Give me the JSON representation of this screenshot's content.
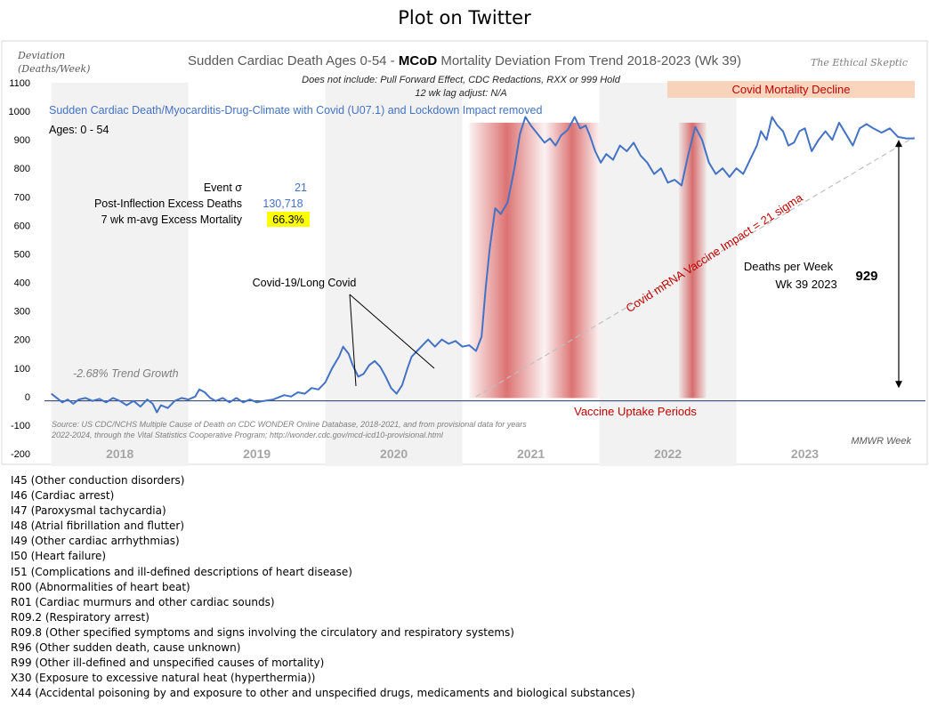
{
  "page": {
    "title": "Plot on Twitter"
  },
  "chart_data": {
    "type": "line",
    "title_prefix": "Sudden Cardiac Death Ages 0-54 - ",
    "title_bold": "MCoD",
    "title_suffix": " Mortality Deviation From Trend  2018-2023 (Wk 39)",
    "subtitle_1": "Does not include: Pull Forward Effect,  CDC Redactions, RXX or 999 Hold",
    "subtitle_2": "12 wk lag adjust: N/A",
    "watermark": "The Ethical Skeptic",
    "ylabel_1": "Deviation",
    "ylabel_2": "(Deaths/Week)",
    "xlabel": "MMWR Week",
    "ylim": [
      -200,
      1100
    ],
    "yticks": [
      -200,
      -100,
      0,
      100,
      200,
      300,
      400,
      500,
      600,
      700,
      800,
      900,
      1000,
      1100
    ],
    "years": [
      "2018",
      "2019",
      "2020",
      "2021",
      "2022",
      "2023"
    ],
    "series": [
      {
        "name": "Sudden Cardiac Death/Myocarditis-Drug-Climate with Covid (U07.1) and Lockdown Impact removed",
        "color": "#4472c4",
        "values": [
          [
            2018.0,
            10
          ],
          [
            2018.04,
            -5
          ],
          [
            2018.08,
            -20
          ],
          [
            2018.12,
            -10
          ],
          [
            2018.16,
            -25
          ],
          [
            2018.2,
            -10
          ],
          [
            2018.25,
            -5
          ],
          [
            2018.3,
            -15
          ],
          [
            2018.35,
            -8
          ],
          [
            2018.4,
            -20
          ],
          [
            2018.45,
            -5
          ],
          [
            2018.5,
            -15
          ],
          [
            2018.55,
            -30
          ],
          [
            2018.6,
            -15
          ],
          [
            2018.65,
            -35
          ],
          [
            2018.7,
            -10
          ],
          [
            2018.74,
            -25
          ],
          [
            2018.77,
            -55
          ],
          [
            2018.8,
            -30
          ],
          [
            2018.85,
            -40
          ],
          [
            2018.9,
            -15
          ],
          [
            2018.95,
            -5
          ],
          [
            2019.0,
            -10
          ],
          [
            2019.05,
            0
          ],
          [
            2019.08,
            25
          ],
          [
            2019.12,
            15
          ],
          [
            2019.16,
            -5
          ],
          [
            2019.2,
            -15
          ],
          [
            2019.25,
            -5
          ],
          [
            2019.3,
            -20
          ],
          [
            2019.35,
            -5
          ],
          [
            2019.4,
            -20
          ],
          [
            2019.45,
            -10
          ],
          [
            2019.5,
            -20
          ],
          [
            2019.55,
            -15
          ],
          [
            2019.62,
            -10
          ],
          [
            2019.7,
            5
          ],
          [
            2019.75,
            0
          ],
          [
            2019.8,
            15
          ],
          [
            2019.85,
            10
          ],
          [
            2019.9,
            30
          ],
          [
            2019.95,
            25
          ],
          [
            2020.0,
            50
          ],
          [
            2020.05,
            100
          ],
          [
            2020.1,
            140
          ],
          [
            2020.13,
            175
          ],
          [
            2020.17,
            150
          ],
          [
            2020.2,
            110
          ],
          [
            2020.24,
            70
          ],
          [
            2020.28,
            80
          ],
          [
            2020.32,
            110
          ],
          [
            2020.36,
            125
          ],
          [
            2020.4,
            105
          ],
          [
            2020.44,
            70
          ],
          [
            2020.48,
            30
          ],
          [
            2020.52,
            10
          ],
          [
            2020.56,
            40
          ],
          [
            2020.6,
            100
          ],
          [
            2020.63,
            140
          ],
          [
            2020.67,
            160
          ],
          [
            2020.71,
            180
          ],
          [
            2020.75,
            200
          ],
          [
            2020.8,
            175
          ],
          [
            2020.85,
            200
          ],
          [
            2020.9,
            185
          ],
          [
            2020.95,
            195
          ],
          [
            2021.0,
            175
          ],
          [
            2021.05,
            180
          ],
          [
            2021.1,
            160
          ],
          [
            2021.14,
            210
          ],
          [
            2021.17,
            380
          ],
          [
            2021.2,
            520
          ],
          [
            2021.24,
            660
          ],
          [
            2021.28,
            640
          ],
          [
            2021.33,
            680
          ],
          [
            2021.38,
            800
          ],
          [
            2021.42,
            920
          ],
          [
            2021.46,
            980
          ],
          [
            2021.5,
            950
          ],
          [
            2021.55,
            920
          ],
          [
            2021.6,
            890
          ],
          [
            2021.64,
            905
          ],
          [
            2021.68,
            880
          ],
          [
            2021.72,
            915
          ],
          [
            2021.77,
            935
          ],
          [
            2021.82,
            980
          ],
          [
            2021.86,
            940
          ],
          [
            2021.9,
            950
          ],
          [
            2021.93,
            915
          ],
          [
            2021.97,
            860
          ],
          [
            2022.01,
            820
          ],
          [
            2022.05,
            850
          ],
          [
            2022.1,
            830
          ],
          [
            2022.15,
            880
          ],
          [
            2022.2,
            860
          ],
          [
            2022.25,
            890
          ],
          [
            2022.3,
            845
          ],
          [
            2022.35,
            820
          ],
          [
            2022.4,
            780
          ],
          [
            2022.45,
            800
          ],
          [
            2022.5,
            750
          ],
          [
            2022.55,
            760
          ],
          [
            2022.6,
            740
          ],
          [
            2022.65,
            850
          ],
          [
            2022.7,
            945
          ],
          [
            2022.75,
            900
          ],
          [
            2022.8,
            820
          ],
          [
            2022.85,
            780
          ],
          [
            2022.9,
            800
          ],
          [
            2022.95,
            770
          ],
          [
            2023.0,
            800
          ],
          [
            2023.05,
            780
          ],
          [
            2023.1,
            830
          ],
          [
            2023.15,
            880
          ],
          [
            2023.18,
            930
          ],
          [
            2023.22,
            900
          ],
          [
            2023.26,
            980
          ],
          [
            2023.3,
            950
          ],
          [
            2023.34,
            930
          ],
          [
            2023.38,
            880
          ],
          [
            2023.42,
            890
          ],
          [
            2023.46,
            930
          ],
          [
            2023.5,
            940
          ],
          [
            2023.55,
            860
          ],
          [
            2023.6,
            900
          ],
          [
            2023.65,
            930
          ],
          [
            2023.7,
            900
          ],
          [
            2023.75,
            960
          ],
          [
            2023.8,
            920
          ],
          [
            2023.85,
            880
          ],
          [
            2023.9,
            940
          ],
          [
            2023.95,
            955
          ],
          [
            2024.0,
            940
          ],
          [
            2024.06,
            925
          ],
          [
            2024.12,
            940
          ],
          [
            2024.18,
            910
          ],
          [
            2024.24,
            905
          ],
          [
            2024.3,
            905
          ]
        ]
      },
      {
        "name": "Covid mRNA Vaccine Impact = 21 sigma",
        "color": "#c0c0c0",
        "values": [
          [
            2021.1,
            0
          ],
          [
            2024.3,
            910
          ]
        ]
      }
    ],
    "x_range": [
      2017.95,
      2024.38
    ],
    "ages_label": "Ages: 0 - 54",
    "trend_label": "-2.68% Trend Growth",
    "covid_label": "Covid-19/Long Covid",
    "stats": [
      {
        "label": "Event σ",
        "value": "21"
      },
      {
        "label": "Post-Inflection Excess Deaths",
        "value": "130,718"
      },
      {
        "label": "7 wk m-avg Excess Mortality",
        "value": "66.3%"
      }
    ],
    "decline_label": "Covid Mortality Decline",
    "vaccine_periods_label": "Vaccine Uptake Periods",
    "vaccine_periods": [
      [
        2021.05,
        2021.6
      ],
      [
        2021.6,
        2022.0
      ],
      [
        2022.58,
        2022.78
      ]
    ],
    "deaths_label_1": "Deaths per Week",
    "deaths_label_2": "Wk 39 2023",
    "deaths_value": "929",
    "source_line_1": "Source: US CDC/NCHS Multiple Cause of Death on CDC WONDER Online Database, 2018-2021, and from provisional data for years",
    "source_line_2": "2022-2024, through the Vital Statistics Cooperative Program; http://wonder.cdc.gov/mcd-icd10-provisional.html",
    "colors": {
      "line": "#4472c4",
      "vaccine": "#c00000",
      "highlight": "#ffff00",
      "decline": "#f8cbad",
      "year_band": "#f2f2f2"
    }
  },
  "codes": [
    "I45 (Other conduction  disorders)",
    "I46 (Cardiac arrest)",
    "I47 (Paroxysmal tachycardia)",
    "I48 (Atrial fibrillation  and flutter)",
    "I49 (Other cardiac arrhythmias)",
    "I50 (Heart failure)",
    "I51 (Complications  and ill-defined  descriptions of heart disease)",
    "R00 (Abnormalities of heart beat)",
    "R01 (Cardiac murmurs and other cardiac sounds)",
    "R09.2 (Respiratory arrest)",
    "R09.8 (Other specified symptoms and signs involving the circulatory and respiratory systems)",
    "R96 (Other sudden death, cause unknown)",
    "R99 (Other ill-defined  and unspecified causes of mortality)",
    "X30 (Exposure to excessive natural heat (hyperthermia))",
    "X44 (Accidental poisoning  by and exposure to other and unspecified  drugs, medicaments and biological substances)"
  ]
}
